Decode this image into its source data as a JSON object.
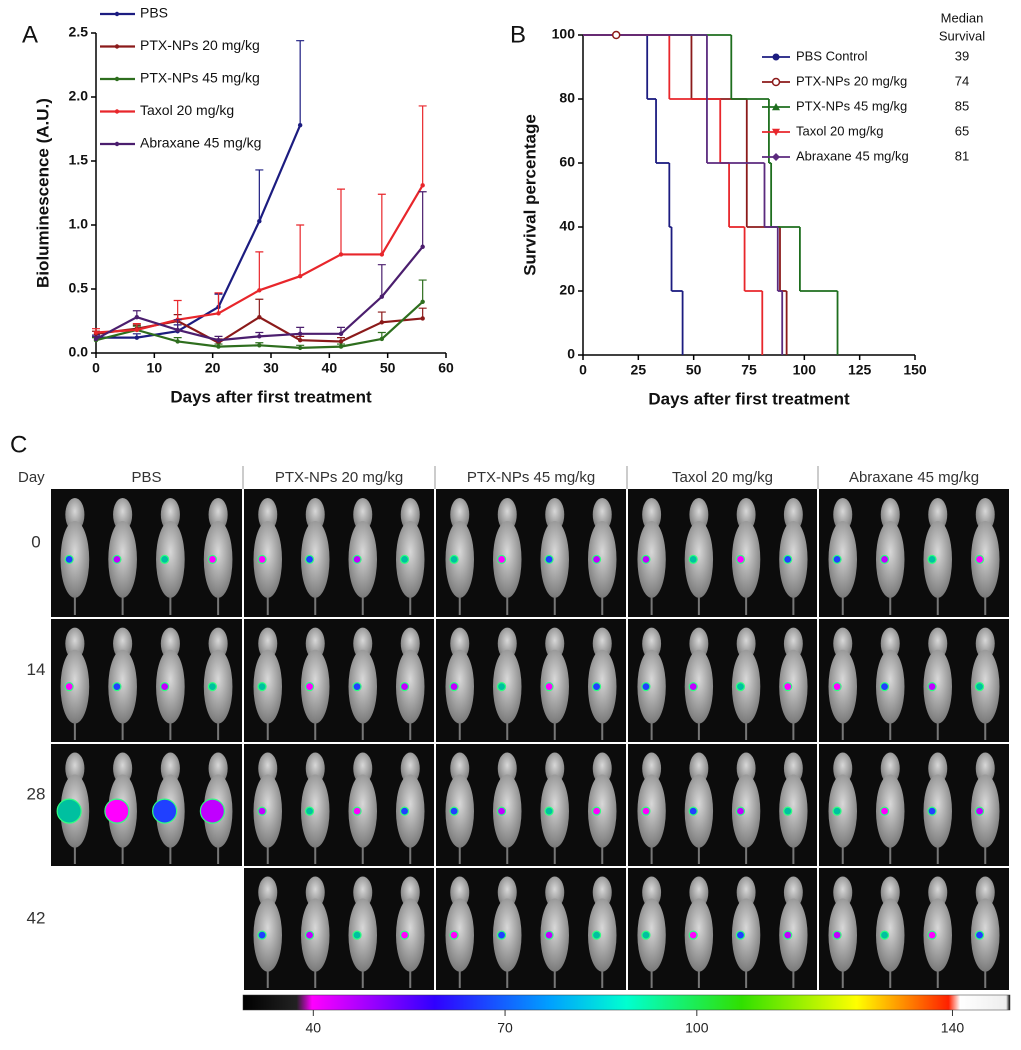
{
  "panel_labels": [
    "A",
    "B",
    "C"
  ],
  "chart_data": [
    {
      "type": "line",
      "x_label": "Days after first treatment",
      "y_label": "Bioluminescence (A.U.)",
      "x": [
        0,
        7,
        14,
        21,
        28,
        35,
        42,
        49,
        56
      ],
      "xlim": [
        0,
        60
      ],
      "xticks": [
        0,
        10,
        20,
        30,
        40,
        50,
        60
      ],
      "ylim": [
        0,
        2.5
      ],
      "yticks": [
        {
          "value": 0,
          "label": "0.0"
        },
        0.5,
        {
          "value": 1,
          "label": "1.0"
        },
        1.5,
        {
          "value": 2,
          "label": "2.0"
        },
        2.5
      ],
      "legend": "upper left",
      "series": [
        {
          "name": "PBS",
          "color": "#1c1c80",
          "values": [
            0.12,
            0.12,
            0.17,
            0.36,
            1.03,
            1.78,
            null,
            null,
            null
          ],
          "errors": [
            0.02,
            0.03,
            0.05,
            0.1,
            0.4,
            0.66,
            null,
            null,
            null
          ]
        },
        {
          "name": "PTX-NPs 20 mg/kg",
          "color": "#8b1a1a",
          "values": [
            0.15,
            0.19,
            0.25,
            0.08,
            0.28,
            0.1,
            0.09,
            0.24,
            0.27
          ],
          "errors": [
            0.02,
            0.03,
            0.05,
            0.03,
            0.14,
            0.03,
            0.03,
            0.08,
            0.08
          ]
        },
        {
          "name": "PTX-NPs 45 mg/kg",
          "color": "#2e6e1e",
          "values": [
            0.1,
            0.18,
            0.09,
            0.05,
            0.06,
            0.04,
            0.05,
            0.11,
            0.4
          ],
          "errors": [
            0.02,
            0.03,
            0.03,
            0.02,
            0.02,
            0.02,
            0.02,
            0.05,
            0.17
          ]
        },
        {
          "name": "Taxol 20 mg/kg",
          "color": "#e8262b",
          "values": [
            0.16,
            0.18,
            0.26,
            0.31,
            0.49,
            0.6,
            0.77,
            0.77,
            1.31
          ],
          "errors": [
            0.03,
            0.05,
            0.15,
            0.16,
            0.3,
            0.4,
            0.51,
            0.47,
            0.62
          ]
        },
        {
          "name": "Abraxane 45 mg/kg",
          "color": "#4b1e6e",
          "values": [
            0.11,
            0.28,
            0.18,
            0.1,
            0.13,
            0.15,
            0.15,
            0.44,
            0.83
          ],
          "errors": [
            0.02,
            0.05,
            0.08,
            0.03,
            0.03,
            0.05,
            0.05,
            0.25,
            0.43
          ]
        }
      ]
    },
    {
      "type": "step",
      "x_label": "Days after first treatment",
      "y_label": "Survival percentage",
      "xlim": [
        0,
        150
      ],
      "xticks": [
        0,
        25,
        50,
        75,
        100,
        125,
        150
      ],
      "ylim": [
        0,
        100
      ],
      "yticks": [
        0,
        20,
        40,
        60,
        80,
        100
      ],
      "legend": "upper right",
      "median_header": [
        "Median",
        "Survival"
      ],
      "series": [
        {
          "name": "PBS Control",
          "color": "#1c1c80",
          "marker": "circle",
          "median": 39,
          "x": [
            0,
            29,
            33,
            39,
            40,
            45
          ],
          "values": [
            100,
            80,
            60,
            40,
            20,
            0
          ]
        },
        {
          "name": "PTX-NPs 20 mg/kg",
          "color": "#8b1a1a",
          "marker": "open-circle",
          "median": 74,
          "x": [
            0,
            49,
            74,
            89,
            92
          ],
          "values": [
            100,
            80,
            40,
            20,
            0
          ]
        },
        {
          "name": "PTX-NPs 45 mg/kg",
          "color": "#1e6e1e",
          "marker": "triangle",
          "median": 85,
          "x": [
            0,
            67,
            84,
            85,
            98,
            115
          ],
          "values": [
            100,
            80,
            60,
            40,
            20,
            0
          ]
        },
        {
          "name": "Taxol 20 mg/kg",
          "color": "#e8262b",
          "marker": "triangle-down",
          "median": 65,
          "x": [
            0,
            39,
            62,
            66,
            73,
            81
          ],
          "values": [
            100,
            80,
            60,
            40,
            20,
            0
          ]
        },
        {
          "name": "Abraxane 45 mg/kg",
          "color": "#5b2a7e",
          "marker": "diamond",
          "median": 81,
          "x": [
            0,
            56,
            82,
            88,
            90
          ],
          "values": [
            100,
            60,
            40,
            20,
            0
          ]
        }
      ]
    }
  ],
  "image_panel": {
    "row_header": "Day",
    "groups": [
      "PBS",
      "PTX-NPs 20 mg/kg",
      "PTX-NPs 45 mg/kg",
      "Taxol 20 mg/kg",
      "Abraxane 45 mg/kg"
    ],
    "days": [
      0,
      14,
      28,
      42
    ],
    "colorbar_lim": [
      29,
      149
    ],
    "colorbar_ticks": [
      40,
      70,
      100,
      140
    ]
  }
}
